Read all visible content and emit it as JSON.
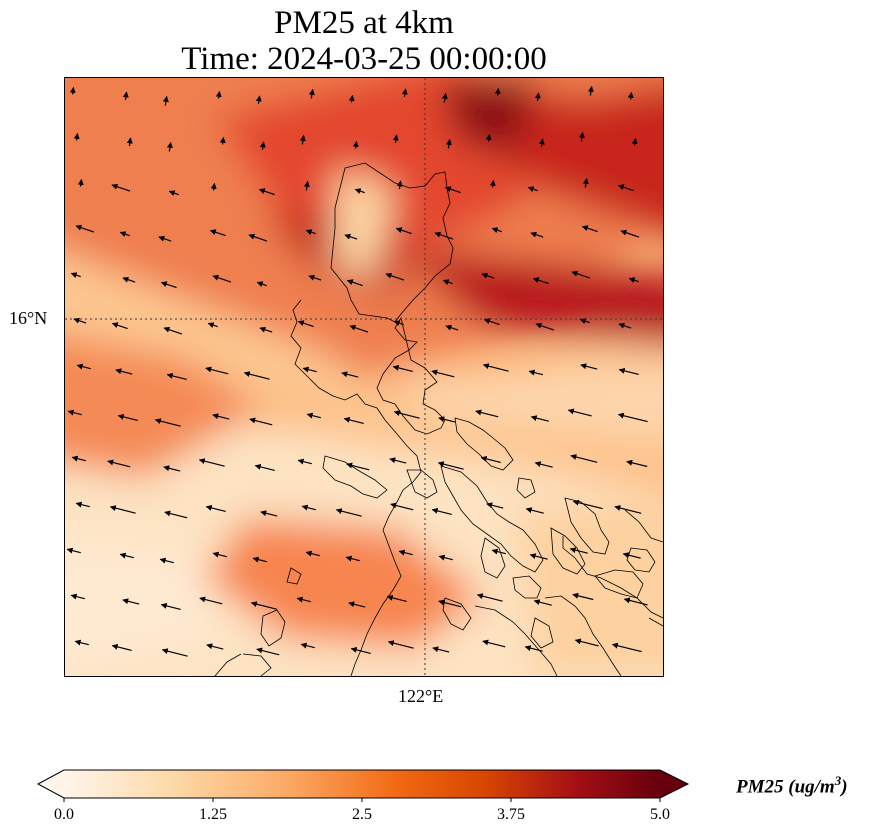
{
  "title": {
    "line1": "PM25 at 4km",
    "line2": "Time: 2024-03-25 00:00:00"
  },
  "axes": {
    "lat_label": "16°N",
    "lon_label": "122°E"
  },
  "colorbar": {
    "label_main": "PM25 (ug/m",
    "label_sup": "3",
    "label_end": ")",
    "min": 0.0,
    "max": 5.0,
    "ticks": [
      "0.0",
      "1.25",
      "2.5",
      "3.75",
      "5.0"
    ],
    "colors": [
      "#fff5eb",
      "#fdd9a9",
      "#fdae6b",
      "#f16913",
      "#d94801",
      "#a50f15",
      "#67000d"
    ]
  },
  "field": {
    "variable": "PM25",
    "units": "ug/m3",
    "wind_direction": "mostly westward"
  }
}
